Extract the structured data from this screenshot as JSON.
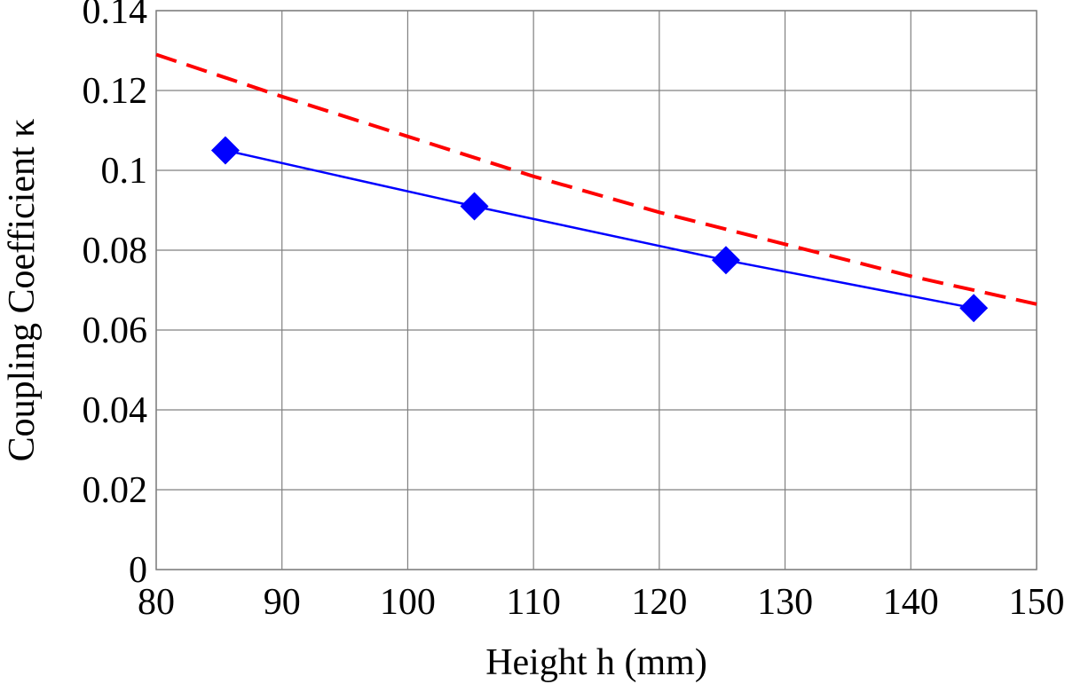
{
  "chart_data": {
    "type": "line",
    "title": "",
    "xlabel": "Height h (mm)",
    "ylabel": "Coupling Coefficient κ",
    "xlim": [
      80,
      150
    ],
    "ylim": [
      0,
      0.14
    ],
    "x_ticks": [
      80,
      90,
      100,
      110,
      120,
      130,
      140,
      150
    ],
    "x_tick_labels": [
      "80",
      "90",
      "100",
      "110",
      "120",
      "130",
      "140",
      "150"
    ],
    "y_ticks": [
      0,
      0.02,
      0.04,
      0.06,
      0.08,
      0.1,
      0.12,
      0.14
    ],
    "y_tick_labels": [
      "0",
      "0.02",
      "0.04",
      "0.06",
      "0.08",
      "0.1",
      "0.12",
      "0.14"
    ],
    "grid": true,
    "legend": "none",
    "series": [
      {
        "style": "solid-line-diamond-markers",
        "color": "#0000ff",
        "x": [
          85.5,
          105.3,
          125.3,
          145
        ],
        "y": [
          0.105,
          0.091,
          0.0775,
          0.0655
        ]
      },
      {
        "style": "dashed-line",
        "color": "#ff0000",
        "x": [
          80,
          90,
          100,
          110,
          120,
          130,
          140,
          150
        ],
        "y": [
          0.129,
          0.1185,
          0.1085,
          0.0985,
          0.0895,
          0.0815,
          0.0735,
          0.0665
        ]
      }
    ]
  }
}
